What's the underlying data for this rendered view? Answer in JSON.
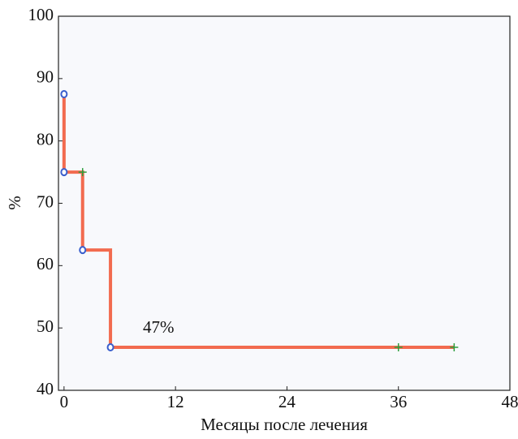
{
  "chart_data": {
    "type": "line",
    "xlabel": "Месяцы после лечения",
    "ylabel": "%",
    "annotation": "47%",
    "xlim": [
      -0.6,
      48
    ],
    "xticks": [
      0,
      12,
      24,
      36,
      48
    ],
    "ylim": [
      40,
      100
    ],
    "yticks": [
      40,
      50,
      60,
      70,
      80,
      90,
      100
    ],
    "series": [
      {
        "color": "#f26b4f",
        "x": [
          0,
          0,
          2,
          2,
          5,
          5,
          42
        ],
        "values": [
          87.5,
          75,
          75,
          62.5,
          62.5,
          46.9,
          46.9
        ]
      }
    ],
    "events": {
      "color": "#3a5fcd",
      "x": [
        0,
        0,
        2,
        5
      ],
      "values": [
        87.5,
        75,
        62.5,
        46.9
      ]
    },
    "censored": {
      "color": "#2e9e3e",
      "x": [
        2,
        36,
        42
      ],
      "values": [
        75,
        46.9,
        46.9
      ]
    }
  }
}
